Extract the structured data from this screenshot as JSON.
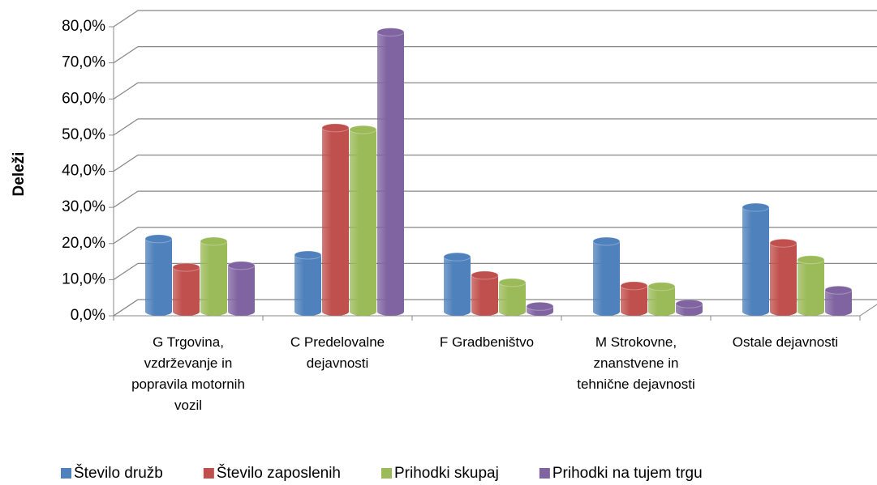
{
  "chart_data": {
    "type": "bar3d",
    "ylabel": "Deleži",
    "categories": [
      "G Trgovina, vzdrževanje in popravila motornih vozil",
      "C Predelovalne dejavnosti",
      "F Gradbeništvo",
      "M Strokovne, znanstvene in tehnične dejavnosti",
      "Ostale dejavnosti"
    ],
    "series": [
      {
        "name": "Število družb",
        "color": "#4f81bd",
        "values": [
          20.2,
          15.7,
          15.2,
          19.5,
          28.9
        ]
      },
      {
        "name": "Število zaposlenih",
        "color": "#c0504d",
        "values": [
          12.3,
          50.9,
          10.1,
          7.2,
          19.0
        ]
      },
      {
        "name": "Prihodki skupaj",
        "color": "#9bbb59",
        "values": [
          19.5,
          50.4,
          8.1,
          7.0,
          14.4
        ]
      },
      {
        "name": "Prihodki na tujem trgu",
        "color": "#8064a2",
        "values": [
          12.8,
          77.4,
          1.5,
          2.2,
          6.0
        ]
      }
    ],
    "ylim": [
      0,
      80
    ],
    "yticks": [
      {
        "value": 0,
        "label": "0,0%"
      },
      {
        "value": 10,
        "label": "10,0%"
      },
      {
        "value": 20,
        "label": "20,0%"
      },
      {
        "value": 30,
        "label": "30,0%"
      },
      {
        "value": 40,
        "label": "40,0%"
      },
      {
        "value": 50,
        "label": "50,0%"
      },
      {
        "value": 60,
        "label": "60,0%"
      },
      {
        "value": 70,
        "label": "70,0%"
      },
      {
        "value": 80,
        "label": "80,0%"
      }
    ],
    "grid": true,
    "legend": "bottom"
  }
}
